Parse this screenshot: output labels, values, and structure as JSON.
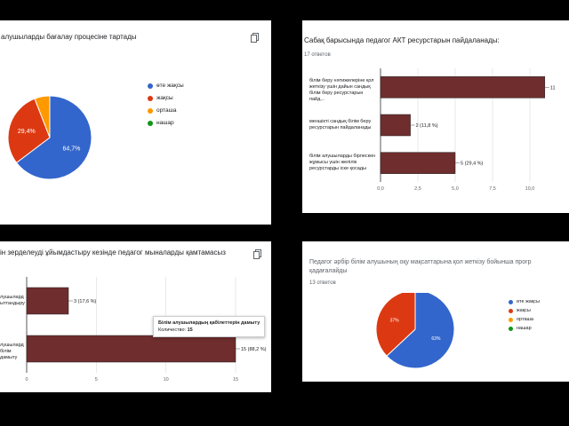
{
  "colors": {
    "brown": "#6f2d2d",
    "blue": "#3366cc",
    "red": "#dc3912",
    "orange": "#ff9900",
    "green": "#109618"
  },
  "card1": {
    "title": "алушыларды бағалау процесіне тартады",
    "legend": [
      "өте жақсы",
      "жақсы",
      "орташа",
      "нашар"
    ],
    "icon": "copy-icon"
  },
  "card2": {
    "title": "Сабақ барысында педагог АКТ ресурстарын пайдаланады:",
    "subtitle": "17 ответов",
    "icon": "copy-icon"
  },
  "card3": {
    "title": "ін зерделеуді ұйымдастыру кезінде педагог мыналарды қамтамасыз",
    "icon": "copy-icon",
    "tooltip": {
      "title": "Білім алушылардың қабілеттерін дамыту",
      "count_label": "Количество:",
      "count_value": "15"
    }
  },
  "card4": {
    "title_line1": "Педагог әрбір білім алушының оқу мақсаттарына қол жеткізу бойынша прогр",
    "title_line2": "қадағалайды",
    "subtitle": "13 ответов",
    "legend": [
      "өте жақсы",
      "жақсы",
      "орташа",
      "нашар"
    ]
  },
  "chart_data": [
    {
      "type": "pie",
      "categories": [
        "өте жақсы",
        "жақсы",
        "орташа",
        "нашар"
      ],
      "values": [
        64.7,
        29.4,
        5.9,
        0
      ],
      "slice_labels": [
        "64,7%",
        "29,4%",
        "",
        ""
      ],
      "legend_position": "right"
    },
    {
      "type": "bar",
      "orientation": "horizontal",
      "categories": [
        [
          "білім беру нәтижелеріне қол",
          "жеткізу үшін дайын сандық",
          "білім беру ресурстарын пайд..."
        ],
        [
          "меншікті сандық білім беру",
          "ресурстарын пайдаланады"
        ],
        [
          "білім алушыларды бірлескен",
          "жұмысы үшін желілік",
          "ресурстарды іске қосады"
        ]
      ],
      "values": [
        11,
        2,
        5
      ],
      "value_labels": [
        "11",
        "2 (11,8 %)",
        "5 (29,4 %)"
      ],
      "xlim": [
        0,
        12.5
      ],
      "ticks": [
        "0,0",
        "2,5",
        "5,0",
        "7,5",
        "10,0"
      ]
    },
    {
      "type": "bar",
      "orientation": "horizontal",
      "categories": [
        [
          "лушылард",
          "ыттандыру"
        ],
        [
          "лушылард",
          "білім дамыту"
        ]
      ],
      "values": [
        3,
        15
      ],
      "value_labels": [
        "3 (17,6 %)",
        "15 (88,2 %)"
      ],
      "xlim": [
        0,
        15
      ],
      "ticks": [
        "0",
        "5",
        "10",
        "15"
      ]
    },
    {
      "type": "pie",
      "categories": [
        "өте жақсы",
        "жақсы",
        "орташа",
        "нашар"
      ],
      "values": [
        63,
        37,
        0,
        0
      ],
      "slice_labels": [
        "63%",
        "37%",
        "",
        ""
      ],
      "legend_position": "right"
    }
  ]
}
